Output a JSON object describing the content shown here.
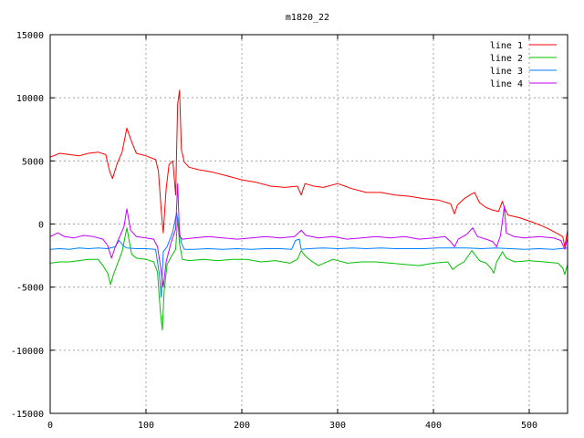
{
  "chart_data": {
    "type": "line",
    "title": "m1820_22",
    "xlabel": "",
    "ylabel": "",
    "xlim": [
      0,
      540
    ],
    "ylim": [
      -15000,
      15000
    ],
    "x_ticks": [
      0,
      100,
      200,
      300,
      400,
      500
    ],
    "y_ticks": [
      -15000,
      -10000,
      -5000,
      0,
      5000,
      10000,
      15000
    ],
    "grid": true,
    "legend_position": "top-right",
    "series": [
      {
        "name": "line 1",
        "color": "#ff0000",
        "points": [
          [
            0,
            5300
          ],
          [
            10,
            5600
          ],
          [
            20,
            5500
          ],
          [
            30,
            5400
          ],
          [
            40,
            5600
          ],
          [
            50,
            5700
          ],
          [
            58,
            5500
          ],
          [
            62,
            4200
          ],
          [
            65,
            3600
          ],
          [
            70,
            4800
          ],
          [
            75,
            5700
          ],
          [
            80,
            7600
          ],
          [
            85,
            6500
          ],
          [
            90,
            5600
          ],
          [
            100,
            5400
          ],
          [
            110,
            5100
          ],
          [
            113,
            4200
          ],
          [
            116,
            1000
          ],
          [
            118,
            -700
          ],
          [
            121,
            2800
          ],
          [
            124,
            4700
          ],
          [
            128,
            5000
          ],
          [
            131,
            2300
          ],
          [
            133,
            9500
          ],
          [
            135,
            10600
          ],
          [
            137,
            5900
          ],
          [
            140,
            4900
          ],
          [
            145,
            4500
          ],
          [
            155,
            4300
          ],
          [
            170,
            4100
          ],
          [
            185,
            3800
          ],
          [
            200,
            3500
          ],
          [
            215,
            3300
          ],
          [
            230,
            3000
          ],
          [
            245,
            2900
          ],
          [
            258,
            3000
          ],
          [
            262,
            2300
          ],
          [
            266,
            3200
          ],
          [
            275,
            3000
          ],
          [
            285,
            2900
          ],
          [
            300,
            3200
          ],
          [
            315,
            2800
          ],
          [
            330,
            2500
          ],
          [
            345,
            2500
          ],
          [
            360,
            2300
          ],
          [
            375,
            2200
          ],
          [
            390,
            2000
          ],
          [
            405,
            1900
          ],
          [
            418,
            1600
          ],
          [
            422,
            800
          ],
          [
            425,
            1500
          ],
          [
            432,
            2000
          ],
          [
            438,
            2300
          ],
          [
            443,
            2500
          ],
          [
            448,
            1700
          ],
          [
            455,
            1300
          ],
          [
            462,
            1100
          ],
          [
            468,
            1000
          ],
          [
            472,
            1800
          ],
          [
            474,
            1300
          ],
          [
            478,
            700
          ],
          [
            490,
            500
          ],
          [
            505,
            100
          ],
          [
            518,
            -300
          ],
          [
            528,
            -700
          ],
          [
            535,
            -1000
          ],
          [
            537,
            -1800
          ],
          [
            540,
            -500
          ]
        ]
      },
      {
        "name": "line 2",
        "color": "#00c000",
        "points": [
          [
            0,
            -3100
          ],
          [
            10,
            -3000
          ],
          [
            20,
            -3000
          ],
          [
            30,
            -2900
          ],
          [
            40,
            -2800
          ],
          [
            50,
            -2800
          ],
          [
            55,
            -3300
          ],
          [
            60,
            -3900
          ],
          [
            63,
            -4800
          ],
          [
            66,
            -4000
          ],
          [
            70,
            -3200
          ],
          [
            75,
            -2200
          ],
          [
            80,
            -300
          ],
          [
            85,
            -2400
          ],
          [
            90,
            -2700
          ],
          [
            100,
            -2800
          ],
          [
            108,
            -3000
          ],
          [
            112,
            -3800
          ],
          [
            115,
            -7000
          ],
          [
            117,
            -8400
          ],
          [
            119,
            -5300
          ],
          [
            122,
            -3200
          ],
          [
            127,
            -2500
          ],
          [
            131,
            -2000
          ],
          [
            133,
            500
          ],
          [
            135,
            -1600
          ],
          [
            138,
            -2800
          ],
          [
            145,
            -2900
          ],
          [
            160,
            -2800
          ],
          [
            175,
            -2900
          ],
          [
            190,
            -2800
          ],
          [
            205,
            -2800
          ],
          [
            220,
            -3000
          ],
          [
            235,
            -2900
          ],
          [
            250,
            -3100
          ],
          [
            258,
            -2800
          ],
          [
            262,
            -2100
          ],
          [
            266,
            -2500
          ],
          [
            272,
            -2900
          ],
          [
            280,
            -3300
          ],
          [
            295,
            -2800
          ],
          [
            310,
            -3100
          ],
          [
            325,
            -3000
          ],
          [
            340,
            -3000
          ],
          [
            355,
            -3100
          ],
          [
            370,
            -3200
          ],
          [
            385,
            -3300
          ],
          [
            400,
            -3100
          ],
          [
            415,
            -3000
          ],
          [
            420,
            -3600
          ],
          [
            425,
            -3300
          ],
          [
            432,
            -3000
          ],
          [
            440,
            -2100
          ],
          [
            448,
            -2900
          ],
          [
            455,
            -3100
          ],
          [
            460,
            -3500
          ],
          [
            463,
            -3900
          ],
          [
            466,
            -3000
          ],
          [
            472,
            -2200
          ],
          [
            476,
            -2700
          ],
          [
            485,
            -3000
          ],
          [
            500,
            -2900
          ],
          [
            515,
            -3000
          ],
          [
            530,
            -3100
          ],
          [
            535,
            -3500
          ],
          [
            537,
            -4000
          ],
          [
            540,
            -3200
          ]
        ]
      },
      {
        "name": "line 3",
        "color": "#0080ff",
        "points": [
          [
            0,
            -2000
          ],
          [
            10,
            -1950
          ],
          [
            20,
            -2000
          ],
          [
            30,
            -1900
          ],
          [
            40,
            -1950
          ],
          [
            50,
            -1900
          ],
          [
            60,
            -1950
          ],
          [
            68,
            -1800
          ],
          [
            72,
            -1300
          ],
          [
            76,
            -1700
          ],
          [
            80,
            -1900
          ],
          [
            90,
            -1950
          ],
          [
            100,
            -1950
          ],
          [
            110,
            -2000
          ],
          [
            114,
            -4000
          ],
          [
            116,
            -5800
          ],
          [
            118,
            -2200
          ],
          [
            122,
            -1800
          ],
          [
            128,
            -600
          ],
          [
            132,
            900
          ],
          [
            134,
            -200
          ],
          [
            137,
            -1500
          ],
          [
            140,
            -2000
          ],
          [
            150,
            -2000
          ],
          [
            165,
            -1950
          ],
          [
            180,
            -2000
          ],
          [
            195,
            -1950
          ],
          [
            210,
            -2000
          ],
          [
            225,
            -1950
          ],
          [
            240,
            -1950
          ],
          [
            252,
            -2000
          ],
          [
            256,
            -1300
          ],
          [
            260,
            -1200
          ],
          [
            262,
            -2000
          ],
          [
            270,
            -1950
          ],
          [
            285,
            -1900
          ],
          [
            300,
            -1950
          ],
          [
            315,
            -1900
          ],
          [
            330,
            -1950
          ],
          [
            345,
            -1900
          ],
          [
            360,
            -1950
          ],
          [
            375,
            -1950
          ],
          [
            390,
            -1950
          ],
          [
            405,
            -1900
          ],
          [
            420,
            -1900
          ],
          [
            435,
            -1900
          ],
          [
            450,
            -1950
          ],
          [
            465,
            -1900
          ],
          [
            480,
            -1950
          ],
          [
            495,
            -2000
          ],
          [
            510,
            -1950
          ],
          [
            525,
            -2000
          ],
          [
            540,
            -1900
          ]
        ]
      },
      {
        "name": "line 4",
        "color": "#c000ff",
        "points": [
          [
            0,
            -1000
          ],
          [
            8,
            -700
          ],
          [
            15,
            -1000
          ],
          [
            25,
            -1100
          ],
          [
            35,
            -900
          ],
          [
            45,
            -1000
          ],
          [
            55,
            -1200
          ],
          [
            60,
            -1700
          ],
          [
            64,
            -2700
          ],
          [
            68,
            -1800
          ],
          [
            72,
            -1100
          ],
          [
            77,
            -200
          ],
          [
            80,
            1200
          ],
          [
            84,
            -500
          ],
          [
            90,
            -1000
          ],
          [
            100,
            -1100
          ],
          [
            108,
            -1200
          ],
          [
            112,
            -1800
          ],
          [
            115,
            -3300
          ],
          [
            118,
            -5000
          ],
          [
            121,
            -3000
          ],
          [
            126,
            -1500
          ],
          [
            131,
            -400
          ],
          [
            133,
            3200
          ],
          [
            135,
            -1000
          ],
          [
            138,
            -1200
          ],
          [
            150,
            -1100
          ],
          [
            165,
            -1000
          ],
          [
            180,
            -1100
          ],
          [
            195,
            -1200
          ],
          [
            210,
            -1100
          ],
          [
            225,
            -1000
          ],
          [
            240,
            -1100
          ],
          [
            255,
            -1000
          ],
          [
            262,
            -500
          ],
          [
            267,
            -900
          ],
          [
            280,
            -1100
          ],
          [
            295,
            -1000
          ],
          [
            310,
            -1200
          ],
          [
            325,
            -1100
          ],
          [
            340,
            -1000
          ],
          [
            355,
            -1100
          ],
          [
            370,
            -1000
          ],
          [
            385,
            -1200
          ],
          [
            400,
            -1100
          ],
          [
            412,
            -1000
          ],
          [
            418,
            -1400
          ],
          [
            422,
            -1800
          ],
          [
            426,
            -1200
          ],
          [
            435,
            -800
          ],
          [
            441,
            -300
          ],
          [
            446,
            -1000
          ],
          [
            455,
            -1200
          ],
          [
            462,
            -1400
          ],
          [
            466,
            -1800
          ],
          [
            470,
            -900
          ],
          [
            474,
            1400
          ],
          [
            476,
            -700
          ],
          [
            484,
            -1000
          ],
          [
            495,
            -1100
          ],
          [
            510,
            -1000
          ],
          [
            525,
            -1100
          ],
          [
            533,
            -1300
          ],
          [
            537,
            -2000
          ],
          [
            540,
            -1100
          ]
        ]
      }
    ]
  }
}
